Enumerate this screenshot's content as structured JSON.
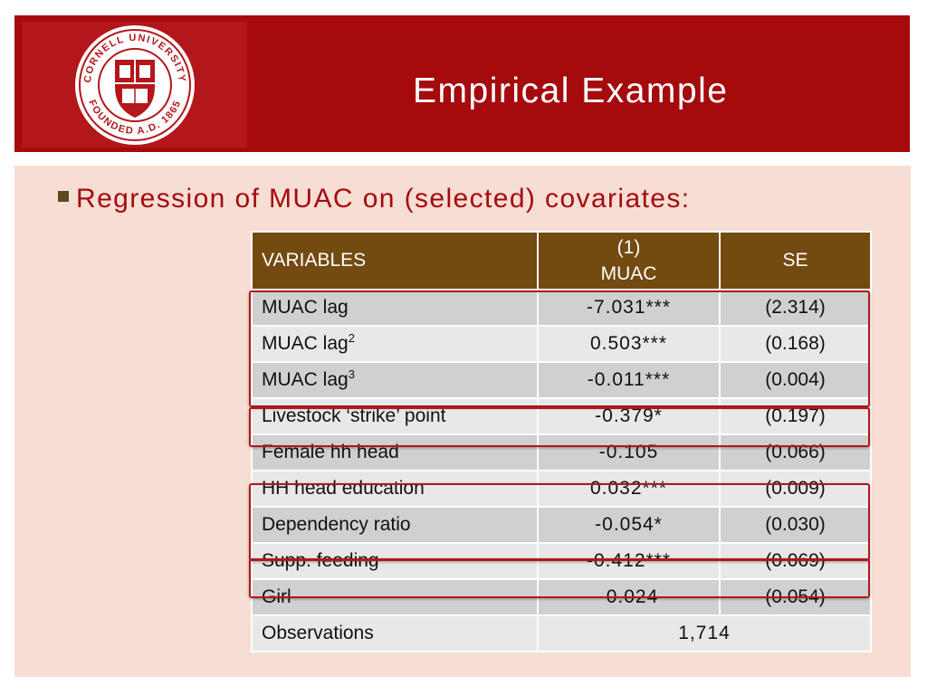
{
  "header": {
    "title": "Empirical Example",
    "logo": {
      "name": "cornell-university-seal",
      "text_top": "CORNELL UNIVERSITY",
      "text_bottom": "FOUNDED A.D. 1865"
    }
  },
  "subtitle": "Regression of MUAC on (selected) covariates:",
  "table": {
    "headers": {
      "variables": "VARIABLES",
      "model_line1": "(1)",
      "model_line2": "MUAC",
      "se": "SE"
    },
    "rows": [
      {
        "variable": "MUAC lag",
        "superscript": "",
        "coef": "-7.031***",
        "se": "(2.314)"
      },
      {
        "variable": "MUAC lag",
        "superscript": "2",
        "coef": "0.503***",
        "se": "(0.168)"
      },
      {
        "variable": "MUAC lag",
        "superscript": "3",
        "coef": "-0.011***",
        "se": "(0.004)"
      },
      {
        "variable": "Livestock ‘strike’ point",
        "superscript": "",
        "coef": "-0.379*",
        "se": "(0.197)"
      },
      {
        "variable": "Female hh head",
        "superscript": "",
        "coef": "-0.105",
        "se": "(0.066)"
      },
      {
        "variable": "HH head education",
        "superscript": "",
        "coef": "0.032***",
        "se": "(0.009)"
      },
      {
        "variable": "Dependency ratio",
        "superscript": "",
        "coef": "-0.054*",
        "se": "(0.030)"
      },
      {
        "variable": "Supp. feeding",
        "superscript": "",
        "coef": "-0.412***",
        "se": "(0.069)"
      },
      {
        "variable": "Girl",
        "superscript": "",
        "coef": "-0.024",
        "se": "(0.054)"
      }
    ],
    "observations": {
      "label": "Observations",
      "value": "1,714"
    }
  },
  "colors": {
    "header_bg": "#a50a0d",
    "content_bg": "#f6ded4",
    "table_header_bg": "#734a10",
    "highlight_border": "#b01818"
  }
}
